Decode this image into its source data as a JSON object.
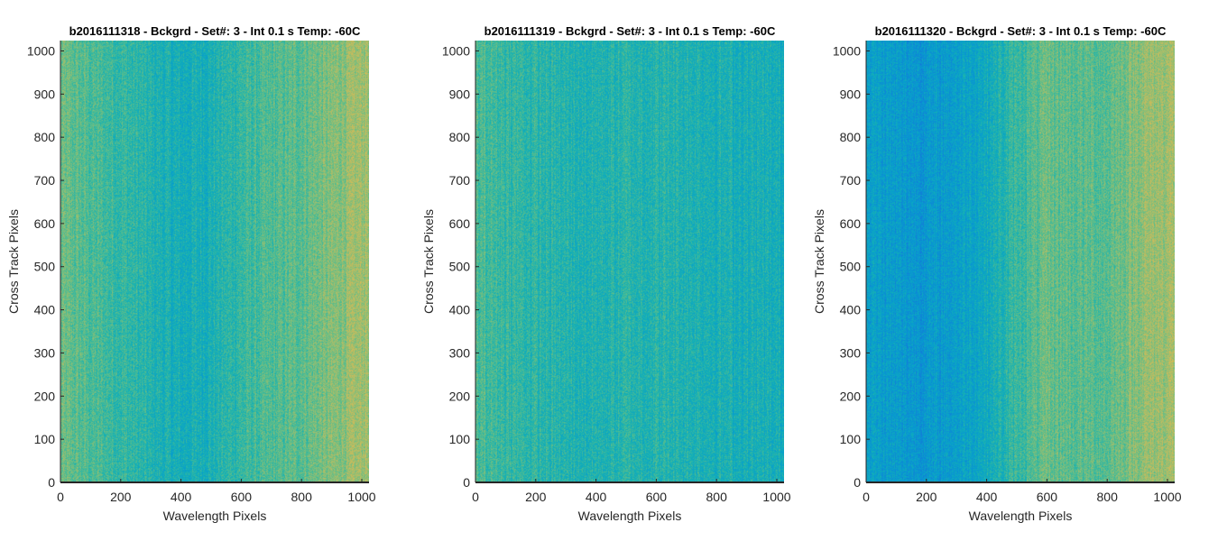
{
  "chart_data": [
    {
      "type": "heatmap",
      "title": "b2016111318 - Bckgrd - Set#: 3 - Int 0.1 s Temp: -60C",
      "xlabel": "Wavelength Pixels",
      "ylabel": "Cross Track Pixels",
      "xlim": [
        0,
        1024
      ],
      "ylim": [
        0,
        1024
      ],
      "xticks": [
        0,
        200,
        400,
        600,
        800,
        1000
      ],
      "yticks": [
        0,
        100,
        200,
        300,
        400,
        500,
        600,
        700,
        800,
        900,
        1000
      ],
      "colormap": "parula",
      "column_profile": {
        "x": [
          0,
          100,
          200,
          300,
          400,
          500,
          600,
          700,
          800,
          900,
          1000,
          1024
        ],
        "level": [
          0.52,
          0.48,
          0.45,
          0.41,
          0.38,
          0.4,
          0.45,
          0.48,
          0.51,
          0.55,
          0.6,
          0.6
        ]
      }
    },
    {
      "type": "heatmap",
      "title": "b2016111319 - Bckgrd - Set#: 3 - Int 0.1 s Temp: -60C",
      "xlabel": "Wavelength Pixels",
      "ylabel": "Cross Track Pixels",
      "xlim": [
        0,
        1024
      ],
      "ylim": [
        0,
        1024
      ],
      "xticks": [
        0,
        200,
        400,
        600,
        800,
        1000
      ],
      "yticks": [
        0,
        100,
        200,
        300,
        400,
        500,
        600,
        700,
        800,
        900,
        1000
      ],
      "colormap": "parula",
      "column_profile": {
        "x": [
          0,
          100,
          200,
          300,
          400,
          500,
          600,
          700,
          800,
          900,
          1000,
          1024
        ],
        "level": [
          0.48,
          0.45,
          0.43,
          0.41,
          0.41,
          0.42,
          0.42,
          0.41,
          0.4,
          0.39,
          0.38,
          0.38
        ]
      }
    },
    {
      "type": "heatmap",
      "title": "b2016111320 - Bckgrd - Set#: 3 - Int 0.1 s Temp: -60C",
      "xlabel": "Wavelength Pixels",
      "ylabel": "Cross Track Pixels",
      "xlim": [
        0,
        1024
      ],
      "ylim": [
        0,
        1024
      ],
      "xticks": [
        0,
        200,
        400,
        600,
        800,
        1000
      ],
      "yticks": [
        0,
        100,
        200,
        300,
        400,
        500,
        600,
        700,
        800,
        900,
        1000
      ],
      "colormap": "parula",
      "column_profile": {
        "x": [
          0,
          100,
          200,
          300,
          400,
          500,
          600,
          700,
          800,
          900,
          1000,
          1024
        ],
        "level": [
          0.33,
          0.3,
          0.29,
          0.32,
          0.37,
          0.45,
          0.52,
          0.5,
          0.5,
          0.57,
          0.6,
          0.6
        ]
      }
    }
  ]
}
